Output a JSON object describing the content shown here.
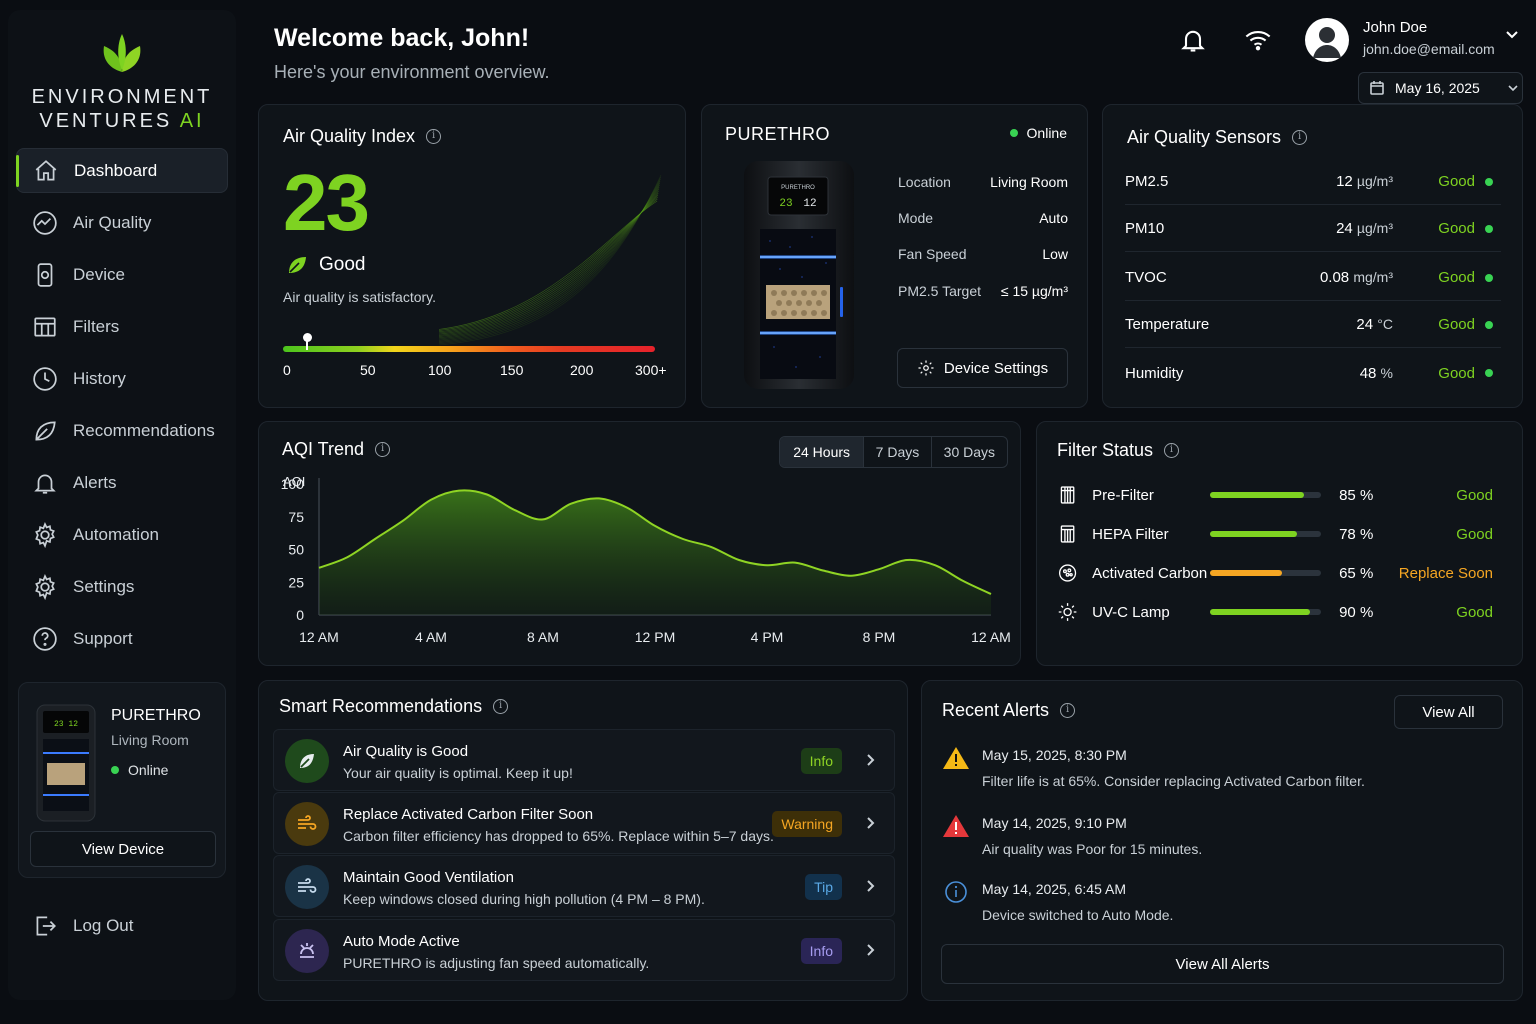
{
  "brand": {
    "line1": "ENVIRONMENT",
    "line2": "VENTURES",
    "line2_accent": "AI"
  },
  "nav": [
    {
      "label": "Dashboard",
      "icon": "home-icon",
      "active": true
    },
    {
      "label": "Air Quality",
      "icon": "chart-circle-icon"
    },
    {
      "label": "Device",
      "icon": "device-icon"
    },
    {
      "label": "Filters",
      "icon": "filter-grid-icon"
    },
    {
      "label": "History",
      "icon": "clock-icon"
    },
    {
      "label": "Recommendations",
      "icon": "leaf-icon"
    },
    {
      "label": "Alerts",
      "icon": "bell-icon"
    },
    {
      "label": "Automation",
      "icon": "gear-icon"
    },
    {
      "label": "Settings",
      "icon": "gear-icon"
    },
    {
      "label": "Support",
      "icon": "help-icon"
    }
  ],
  "side_device": {
    "name": "PURETHRO",
    "location": "Living Room",
    "status": "Online",
    "button": "View Device"
  },
  "logout": "Log Out",
  "header": {
    "welcome": "Welcome back, John!",
    "subtitle": "Here's your environment overview.",
    "user_name": "John Doe",
    "user_email": "john.doe@email.com",
    "date": "May 16, 2025"
  },
  "aqi": {
    "title": "Air Quality Index",
    "value": "23",
    "status": "Good",
    "description": "Air quality is satisfactory.",
    "scale_ticks": [
      "0",
      "50",
      "100",
      "150",
      "200",
      "300+"
    ],
    "marker_fraction": 0.065
  },
  "purifier": {
    "name": "PURETHRO",
    "status": "Online",
    "display_left": "23",
    "display_right": "12",
    "details": [
      {
        "k": "Location",
        "v": "Living Room"
      },
      {
        "k": "Mode",
        "v": "Auto"
      },
      {
        "k": "Fan Speed",
        "v": "Low"
      },
      {
        "k": "PM2.5 Target",
        "v": "≤ 15 µg/m³"
      }
    ],
    "settings_button": "Device Settings"
  },
  "sensors": {
    "title": "Air Quality Sensors",
    "rows": [
      {
        "name": "PM2.5",
        "value": "12",
        "unit": "µg/m³",
        "status": "Good"
      },
      {
        "name": "PM10",
        "value": "24",
        "unit": "µg/m³",
        "status": "Good"
      },
      {
        "name": "TVOC",
        "value": "0.08",
        "unit": "mg/m³",
        "status": "Good"
      },
      {
        "name": "Temperature",
        "value": "24",
        "unit": "°C",
        "status": "Good"
      },
      {
        "name": "Humidity",
        "value": "48",
        "unit": "%",
        "status": "Good"
      }
    ]
  },
  "trend": {
    "title": "AQI Trend",
    "tabs": [
      "24 Hours",
      "7 Days",
      "30 Days"
    ],
    "active_tab": 0
  },
  "chart_data": {
    "type": "area",
    "ylabel": "AQI",
    "ylim": [
      0,
      100
    ],
    "yticks": [
      "100",
      "75",
      "50",
      "25",
      "0"
    ],
    "xticks": [
      "12 AM",
      "4 AM",
      "8 AM",
      "12 PM",
      "4 PM",
      "8 PM",
      "12 AM"
    ],
    "x": [
      0,
      1,
      2,
      3,
      4,
      5,
      6,
      7,
      8,
      9,
      10,
      11,
      12,
      13,
      14,
      15,
      16,
      17,
      18,
      19,
      20,
      21,
      22,
      23,
      24
    ],
    "values": [
      36,
      44,
      58,
      72,
      88,
      95,
      92,
      80,
      73,
      85,
      89,
      82,
      68,
      58,
      52,
      42,
      38,
      40,
      34,
      30,
      35,
      42,
      38,
      26,
      16
    ]
  },
  "filters": {
    "title": "Filter Status",
    "rows": [
      {
        "name": "Pre-Filter",
        "percent": 85,
        "label": "85 %",
        "status": "Good",
        "color": "#7ed321",
        "icon": "pre-filter-icon"
      },
      {
        "name": "HEPA Filter",
        "percent": 78,
        "label": "78 %",
        "status": "Good",
        "color": "#7ed321",
        "icon": "hepa-filter-icon"
      },
      {
        "name": "Activated Carbon",
        "percent": 65,
        "label": "65 %",
        "status": "Replace Soon",
        "color": "#f5a623",
        "icon": "carbon-filter-icon"
      },
      {
        "name": "UV-C Lamp",
        "percent": 90,
        "label": "90 %",
        "status": "Good",
        "color": "#7ed321",
        "icon": "uv-lamp-icon"
      }
    ]
  },
  "recommendations": {
    "title": "Smart Recommendations",
    "items": [
      {
        "title": "Air Quality is Good",
        "desc": "Your air quality is optimal. Keep it up!",
        "badge": "Info",
        "kind": "good"
      },
      {
        "title": "Replace Activated Carbon Filter Soon",
        "desc": "Carbon filter efficiency has dropped to 65%. Replace within 5–7 days.",
        "badge": "Warning",
        "kind": "warn"
      },
      {
        "title": "Maintain Good Ventilation",
        "desc": "Keep windows closed during high pollution (4 PM – 8 PM).",
        "badge": "Tip",
        "kind": "tip"
      },
      {
        "title": "Auto Mode Active",
        "desc": "PURETHRO is adjusting fan speed automatically.",
        "badge": "Info",
        "kind": "auto"
      }
    ]
  },
  "alerts": {
    "title": "Recent Alerts",
    "view_all": "View All",
    "view_all_alerts": "View All Alerts",
    "items": [
      {
        "time": "May 15, 2025, 8:30 PM",
        "text": "Filter life is at 65%. Consider replacing Activated Carbon filter.",
        "kind": "warning"
      },
      {
        "time": "May 14, 2025, 9:10 PM",
        "text": "Air quality was Poor for 15 minutes.",
        "kind": "danger"
      },
      {
        "time": "May 14, 2025, 6:45 AM",
        "text": "Device switched to Auto Mode.",
        "kind": "info"
      }
    ]
  }
}
